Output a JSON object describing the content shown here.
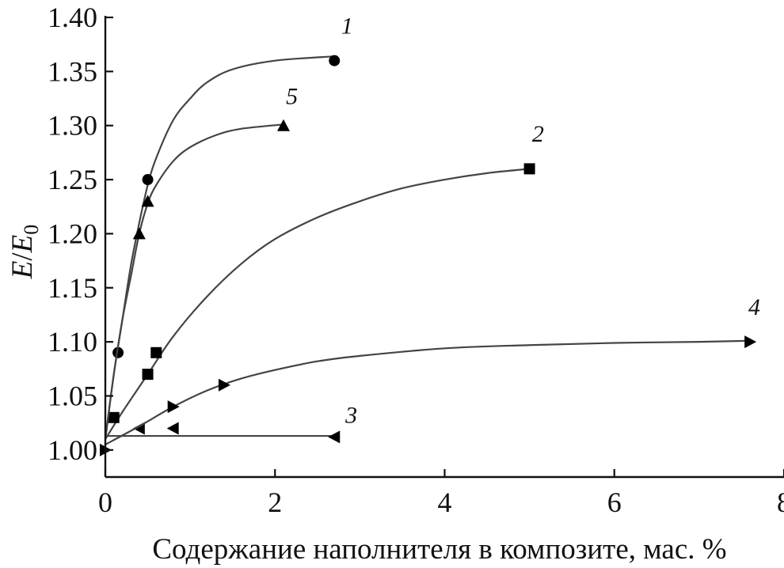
{
  "chart_data": {
    "type": "scatter",
    "title": "",
    "xlabel": "Содержание наполнителя в композите, мас. %",
    "ylabel_main": "E",
    "ylabel_sep": "/",
    "ylabel_denom": "E",
    "ylabel_sub": "0",
    "xlim": [
      0,
      8
    ],
    "ylim": [
      0.975,
      1.4
    ],
    "x_ticks": [
      0,
      2,
      4,
      6,
      8
    ],
    "x_tick_labels": [
      "0",
      "2",
      "4",
      "6",
      "8"
    ],
    "y_ticks": [
      1.0,
      1.05,
      1.1,
      1.15,
      1.2,
      1.25,
      1.3,
      1.35,
      1.4
    ],
    "y_tick_labels": [
      "1.00",
      "1.05",
      "1.10",
      "1.15",
      "1.20",
      "1.25",
      "1.30",
      "1.35",
      "1.40"
    ],
    "grid": false,
    "series": [
      {
        "name": "1",
        "marker": "circle",
        "points": [
          [
            0.15,
            1.09
          ],
          [
            0.5,
            1.25
          ],
          [
            2.7,
            1.36
          ]
        ],
        "curve": [
          [
            0,
            1.01
          ],
          [
            0.1,
            1.07
          ],
          [
            0.2,
            1.12
          ],
          [
            0.3,
            1.17
          ],
          [
            0.4,
            1.21
          ],
          [
            0.5,
            1.245
          ],
          [
            0.6,
            1.27
          ],
          [
            0.8,
            1.305
          ],
          [
            1.0,
            1.325
          ],
          [
            1.2,
            1.34
          ],
          [
            1.5,
            1.352
          ],
          [
            2.0,
            1.36
          ],
          [
            2.7,
            1.364
          ]
        ],
        "label_pos": [
          2.85,
          1.385
        ]
      },
      {
        "name": "2",
        "marker": "square",
        "points": [
          [
            0.1,
            1.03
          ],
          [
            0.5,
            1.07
          ],
          [
            0.6,
            1.09
          ],
          [
            5.0,
            1.26
          ]
        ],
        "curve": [
          [
            0,
            1.01
          ],
          [
            0.2,
            1.035
          ],
          [
            0.5,
            1.07
          ],
          [
            0.8,
            1.105
          ],
          [
            1.2,
            1.142
          ],
          [
            1.6,
            1.172
          ],
          [
            2.0,
            1.195
          ],
          [
            2.5,
            1.215
          ],
          [
            3.0,
            1.23
          ],
          [
            3.5,
            1.242
          ],
          [
            4.0,
            1.25
          ],
          [
            4.5,
            1.256
          ],
          [
            5.0,
            1.26
          ]
        ],
        "label_pos": [
          5.1,
          1.285
        ]
      },
      {
        "name": "3",
        "marker": "triangle-left",
        "points": [
          [
            0.4,
            1.02
          ],
          [
            0.8,
            1.02
          ],
          [
            2.7,
            1.012
          ]
        ],
        "curve": [
          [
            0,
            1.013
          ],
          [
            2.7,
            1.013
          ]
        ],
        "label_pos": [
          2.9,
          1.025
        ]
      },
      {
        "name": "4",
        "marker": "triangle-right",
        "points": [
          [
            0,
            1.0
          ],
          [
            0.8,
            1.04
          ],
          [
            1.4,
            1.06
          ],
          [
            7.6,
            1.1
          ]
        ],
        "curve": [
          [
            0,
            1.005
          ],
          [
            0.4,
            1.022
          ],
          [
            0.8,
            1.04
          ],
          [
            1.2,
            1.055
          ],
          [
            1.6,
            1.066
          ],
          [
            2.0,
            1.074
          ],
          [
            2.5,
            1.082
          ],
          [
            3.0,
            1.087
          ],
          [
            4.0,
            1.094
          ],
          [
            5.0,
            1.097
          ],
          [
            6.0,
            1.099
          ],
          [
            7.0,
            1.1
          ],
          [
            7.6,
            1.101
          ]
        ],
        "label_pos": [
          7.65,
          1.125
        ]
      },
      {
        "name": "5",
        "marker": "triangle-up",
        "points": [
          [
            0.4,
            1.2
          ],
          [
            0.5,
            1.23
          ],
          [
            2.1,
            1.3
          ]
        ],
        "curve": [
          [
            0,
            1.01
          ],
          [
            0.1,
            1.07
          ],
          [
            0.2,
            1.12
          ],
          [
            0.3,
            1.16
          ],
          [
            0.4,
            1.2
          ],
          [
            0.5,
            1.228
          ],
          [
            0.6,
            1.245
          ],
          [
            0.8,
            1.267
          ],
          [
            1.0,
            1.28
          ],
          [
            1.3,
            1.291
          ],
          [
            1.6,
            1.297
          ],
          [
            2.1,
            1.301
          ]
        ],
        "label_pos": [
          2.2,
          1.32
        ]
      }
    ]
  }
}
